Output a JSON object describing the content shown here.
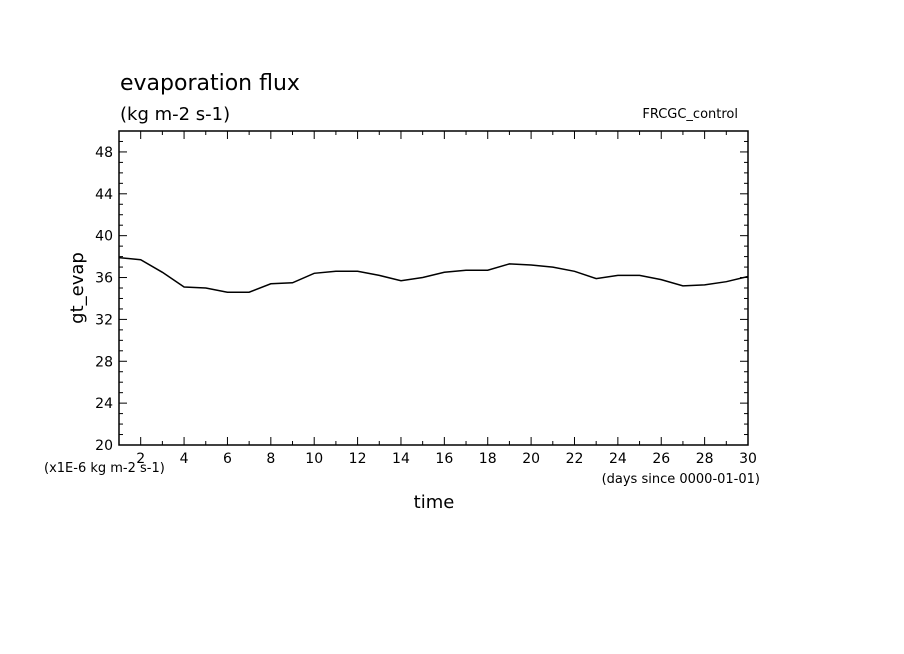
{
  "chart_data": {
    "type": "line",
    "title": "evaporation flux",
    "subtitle": "(kg m-2 s-1)",
    "experiment": "FRCGC_control",
    "ylabel": "gt_evap",
    "xlabel": "time",
    "y_unit_note": "(x1E-6 kg m-2 s-1)",
    "x_unit_note": "(days since 0000-01-01)",
    "xlim": [
      1,
      30
    ],
    "ylim": [
      20,
      50
    ],
    "x_ticks": [
      2,
      4,
      6,
      8,
      10,
      12,
      14,
      16,
      18,
      20,
      22,
      24,
      26,
      28,
      30
    ],
    "y_ticks": [
      20,
      24,
      28,
      32,
      36,
      40,
      44,
      48
    ],
    "series": [
      {
        "x": [
          1,
          2,
          3,
          4,
          5,
          6,
          7,
          8,
          9,
          10,
          11,
          12,
          13,
          14,
          15,
          16,
          17,
          18,
          19,
          20,
          21,
          22,
          23,
          24,
          25,
          26,
          27,
          28,
          29,
          30
        ],
        "values": [
          37.9,
          37.7,
          36.5,
          35.1,
          35.0,
          34.6,
          34.6,
          35.4,
          35.5,
          36.4,
          36.6,
          36.6,
          36.2,
          35.7,
          36.0,
          36.5,
          36.7,
          36.7,
          37.3,
          37.2,
          37.0,
          36.6,
          35.9,
          36.2,
          36.2,
          35.8,
          35.2,
          35.3,
          35.6,
          36.1
        ]
      }
    ]
  }
}
